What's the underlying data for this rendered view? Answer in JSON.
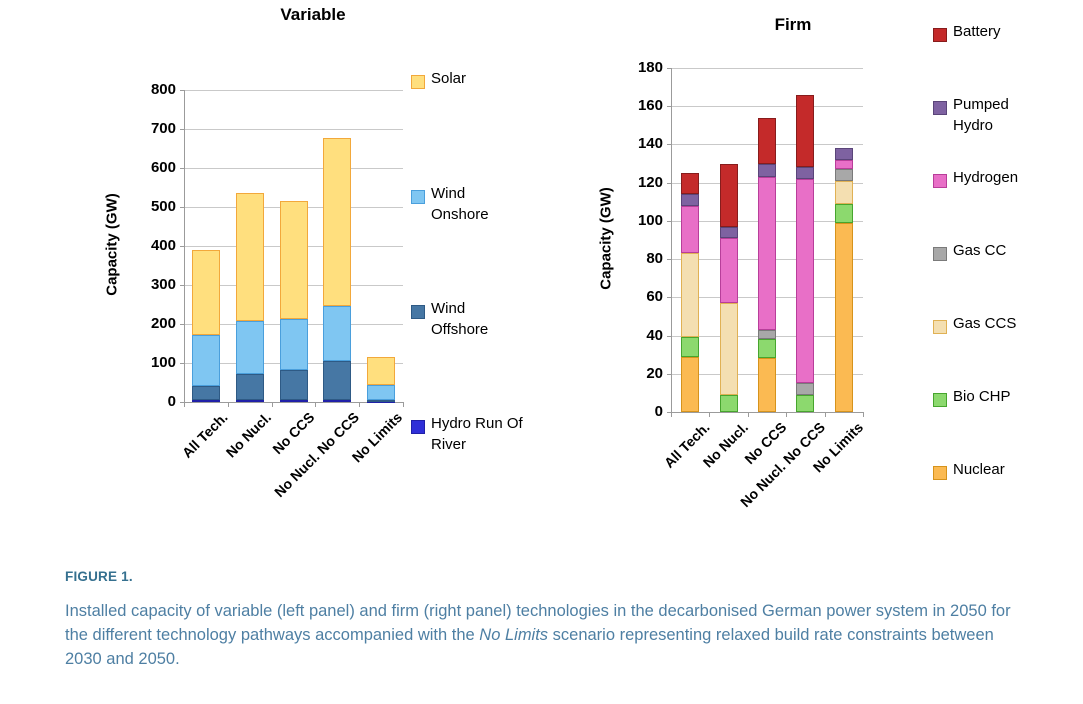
{
  "figure": {
    "caption_label": "FIGURE 1.",
    "caption_text_before": "Installed capacity of variable (left panel) and firm (right panel) technologies in the decarbonised German power system in 2050 for the different technology pathways accompanied with the ",
    "caption_italic": "No Limits",
    "caption_text_after": " scenario representing relaxed build rate constraints between 2030 and 2050.",
    "caption_label_color": "#35708F",
    "caption_text_color": "#4E7FA3"
  },
  "chart_data": [
    {
      "type": "bar",
      "stacked": true,
      "title": "Variable",
      "ylabel": "Capacity (GW)",
      "ylim": [
        0,
        800
      ],
      "ytick_step": 100,
      "grid": true,
      "legend_position": "right",
      "categories": [
        "All Tech.",
        "No Nucl.",
        "No CCS",
        "No Nucl. No CCS",
        "No Limits"
      ],
      "series": [
        {
          "name": "Hydro Run Of River",
          "legend_label": "Hydro Run Of\nRiver",
          "fill": "#2f2fd8",
          "border": "#2020a8",
          "values": [
            4,
            4,
            4,
            4,
            2
          ]
        },
        {
          "name": "Wind Offshore",
          "legend_label": "Wind\nOffshore",
          "fill": "#4677a4",
          "border": "#2e5a85",
          "values": [
            36,
            68,
            77,
            102,
            2
          ]
        },
        {
          "name": "Wind Onshore",
          "legend_label": "Wind\nOnshore",
          "fill": "#7fc6f2",
          "border": "#4a9fdc",
          "values": [
            132,
            136,
            133,
            141,
            40
          ]
        },
        {
          "name": "Solar",
          "legend_label": "Solar",
          "fill": "#ffdf7e",
          "border": "#f2a83b",
          "values": [
            218,
            327,
            301,
            430,
            71
          ]
        }
      ],
      "totals": [
        390,
        535,
        515,
        677,
        115
      ]
    },
    {
      "type": "bar",
      "stacked": true,
      "title": "Firm",
      "ylabel": "Capacity (GW)",
      "ylim": [
        0,
        180
      ],
      "ytick_step": 20,
      "grid": true,
      "legend_position": "right",
      "categories": [
        "All Tech.",
        "No Nucl.",
        "No CCS",
        "No Nucl. No CCS",
        "No Limits"
      ],
      "series": [
        {
          "name": "Nuclear",
          "legend_label": "Nuclear",
          "fill": "#fbba52",
          "border": "#d6931c",
          "values": [
            29,
            0,
            28,
            0,
            99
          ]
        },
        {
          "name": "Bio CHP",
          "legend_label": "Bio CHP",
          "fill": "#8cd96e",
          "border": "#47a52e",
          "values": [
            10,
            9,
            10,
            9,
            10
          ]
        },
        {
          "name": "Gas CCS",
          "legend_label": "Gas CCS",
          "fill": "#f4dfb1",
          "border": "#e0b154",
          "values": [
            44,
            48,
            0,
            0,
            12
          ]
        },
        {
          "name": "Gas CC",
          "legend_label": "Gas CC",
          "fill": "#a8a8a8",
          "border": "#7a7a7a",
          "values": [
            0,
            0,
            5,
            6,
            6
          ]
        },
        {
          "name": "Hydrogen",
          "legend_label": "Hydrogen",
          "fill": "#e86fc7",
          "border": "#b83e9a",
          "values": [
            25,
            34,
            80,
            107,
            5
          ]
        },
        {
          "name": "Pumped Hydro",
          "legend_label": "Pumped\nHydro",
          "fill": "#7e62a1",
          "border": "#5a4579",
          "values": [
            6,
            6,
            7,
            6,
            6
          ]
        },
        {
          "name": "Battery",
          "legend_label": "Battery",
          "fill": "#c42a2a",
          "border": "#871c1c",
          "values": [
            11,
            33,
            24,
            38,
            0
          ]
        }
      ],
      "totals": [
        125,
        130,
        154,
        166,
        138
      ]
    }
  ]
}
